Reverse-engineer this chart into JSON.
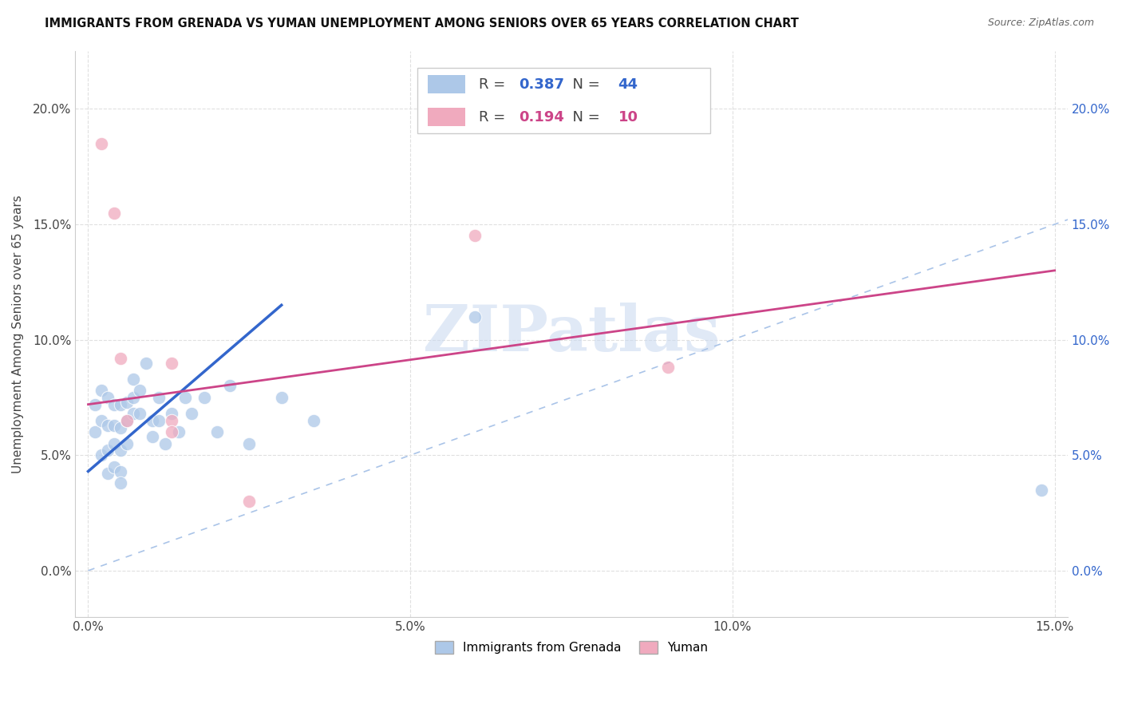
{
  "title": "IMMIGRANTS FROM GRENADA VS YUMAN UNEMPLOYMENT AMONG SENIORS OVER 65 YEARS CORRELATION CHART",
  "source": "Source: ZipAtlas.com",
  "ylabel": "Unemployment Among Seniors over 65 years",
  "xlim": [
    -0.002,
    0.152
  ],
  "ylim": [
    -0.02,
    0.225
  ],
  "xticks": [
    0.0,
    0.05,
    0.1,
    0.15
  ],
  "yticks": [
    0.0,
    0.05,
    0.1,
    0.15,
    0.2
  ],
  "legend_labels": [
    "Immigrants from Grenada",
    "Yuman"
  ],
  "blue_R": "0.387",
  "blue_N": "44",
  "pink_R": "0.194",
  "pink_N": "10",
  "blue_color": "#adc8e8",
  "pink_color": "#f0aabe",
  "blue_line_color": "#3366cc",
  "pink_line_color": "#cc4488",
  "diagonal_color": "#aac4e8",
  "background_color": "#ffffff",
  "watermark_text": "ZIPatlas",
  "blue_scatter_x": [
    0.001,
    0.001,
    0.002,
    0.002,
    0.002,
    0.003,
    0.003,
    0.003,
    0.003,
    0.004,
    0.004,
    0.004,
    0.004,
    0.005,
    0.005,
    0.005,
    0.005,
    0.005,
    0.006,
    0.006,
    0.006,
    0.007,
    0.007,
    0.007,
    0.008,
    0.008,
    0.009,
    0.01,
    0.01,
    0.011,
    0.011,
    0.012,
    0.013,
    0.014,
    0.015,
    0.016,
    0.018,
    0.02,
    0.022,
    0.025,
    0.03,
    0.035,
    0.06,
    0.148
  ],
  "blue_scatter_y": [
    0.072,
    0.06,
    0.078,
    0.065,
    0.05,
    0.075,
    0.063,
    0.052,
    0.042,
    0.072,
    0.063,
    0.055,
    0.045,
    0.072,
    0.062,
    0.052,
    0.043,
    0.038,
    0.073,
    0.065,
    0.055,
    0.083,
    0.075,
    0.068,
    0.078,
    0.068,
    0.09,
    0.065,
    0.058,
    0.075,
    0.065,
    0.055,
    0.068,
    0.06,
    0.075,
    0.068,
    0.075,
    0.06,
    0.08,
    0.055,
    0.075,
    0.065,
    0.11,
    0.035
  ],
  "pink_scatter_x": [
    0.002,
    0.004,
    0.005,
    0.006,
    0.013,
    0.013,
    0.013,
    0.025,
    0.06,
    0.09
  ],
  "pink_scatter_y": [
    0.185,
    0.155,
    0.092,
    0.065,
    0.09,
    0.065,
    0.06,
    0.03,
    0.145,
    0.088
  ],
  "blue_line_x0": 0.0,
  "blue_line_x1": 0.03,
  "blue_line_y0": 0.043,
  "blue_line_y1": 0.115,
  "pink_line_x0": 0.0,
  "pink_line_x1": 0.15,
  "pink_line_y0": 0.072,
  "pink_line_y1": 0.13
}
